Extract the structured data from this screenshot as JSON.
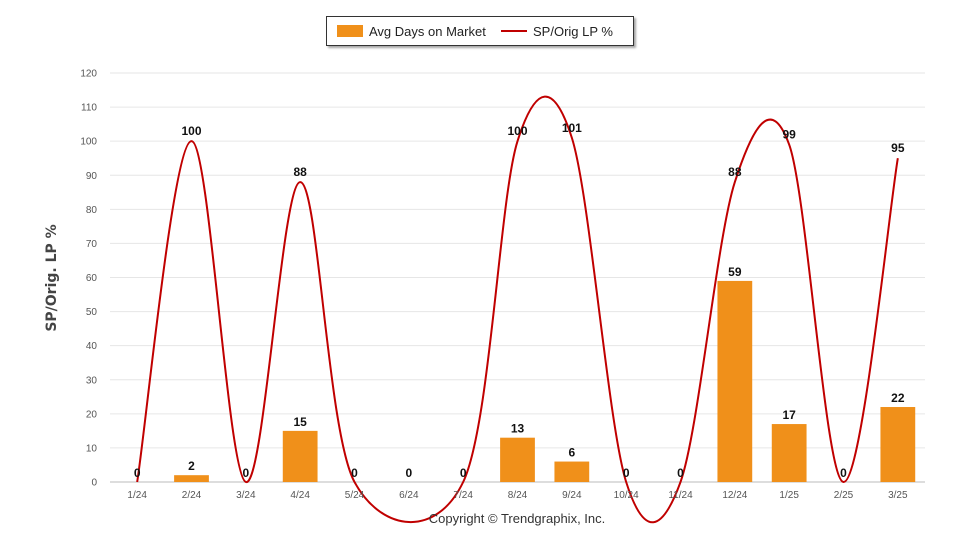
{
  "chart_data": {
    "type": "bar",
    "categories": [
      "1/24",
      "2/24",
      "3/24",
      "4/24",
      "5/24",
      "6/24",
      "7/24",
      "8/24",
      "9/24",
      "10/24",
      "11/24",
      "12/24",
      "1/25",
      "2/25",
      "3/25"
    ],
    "series": [
      {
        "name": "Avg Days on Market",
        "type": "bar",
        "color": "#f0901a",
        "values": [
          0,
          2,
          0,
          15,
          0,
          0,
          0,
          13,
          6,
          0,
          0,
          59,
          17,
          0,
          22
        ]
      },
      {
        "name": "SP/Orig LP %",
        "type": "line",
        "color": "#c00000",
        "values": [
          0,
          100,
          0,
          88,
          0,
          null,
          0,
          100,
          101,
          0,
          0,
          88,
          99,
          0,
          95
        ]
      }
    ],
    "bar_labels": [
      "0",
      "2",
      "0",
      "15",
      "0",
      "0",
      "0",
      "13",
      "6",
      "0",
      "0",
      "59",
      "17",
      "0",
      "22"
    ],
    "line_labels": [
      "",
      "100",
      "",
      "88",
      "",
      "",
      "",
      "100",
      "101",
      "",
      "",
      "88",
      "99",
      "",
      "95"
    ],
    "ylabel": "SP/Orig. LP %",
    "xlabel": "",
    "ylim": [
      0,
      120
    ],
    "yticks": [
      0,
      10,
      20,
      30,
      40,
      50,
      60,
      70,
      80,
      90,
      100,
      110,
      120
    ],
    "grid": true,
    "legend_position": "top-center"
  },
  "legend": {
    "bar_label": "Avg Days on Market",
    "line_label": "SP/Orig LP %"
  },
  "footer": {
    "copyright": "Copyright © Trendgraphix, Inc."
  },
  "colors": {
    "bar": "#f0901a",
    "line": "#c00000",
    "grid": "#e6e6e6"
  }
}
